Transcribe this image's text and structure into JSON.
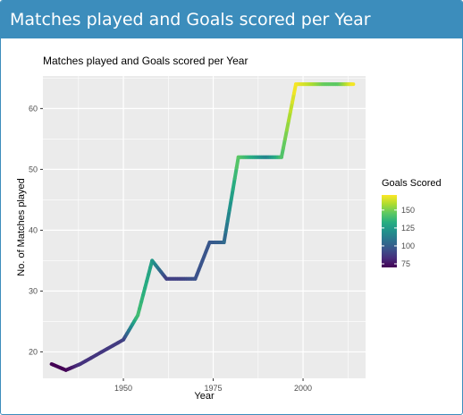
{
  "box": {
    "title": "Matches played and Goals scored per Year"
  },
  "chart_data": {
    "type": "line",
    "title": "Matches played and Goals scored per Year",
    "xlabel": "Year",
    "ylabel": "No. of Matches played",
    "xlim": [
      1927.6,
      2017.4
    ],
    "ylim": [
      15.65,
      65.35
    ],
    "xticks": [
      1950,
      1975,
      2000
    ],
    "yticks": [
      20,
      30,
      40,
      50,
      60
    ],
    "grid": true,
    "background": "#ebebeb",
    "series": [
      {
        "x": [
          1930,
          1934,
          1938,
          1950,
          1954,
          1958,
          1962,
          1966,
          1970,
          1974,
          1978,
          1982,
          1986,
          1990,
          1994,
          1998,
          2002,
          2006,
          2010,
          2014
        ],
        "y": [
          18,
          17,
          18,
          22,
          26,
          35,
          32,
          32,
          32,
          38,
          38,
          52,
          52,
          52,
          52,
          64,
          64,
          64,
          64,
          64
        ],
        "goals": [
          70,
          70,
          84,
          88,
          140,
          126,
          89,
          89,
          95,
          97,
          102,
          146,
          132,
          115,
          141,
          171,
          161,
          147,
          145,
          171
        ]
      }
    ],
    "color_legend": {
      "title": "Goals Scored",
      "breaks": [
        75,
        100,
        125,
        150
      ],
      "range": [
        70,
        171
      ],
      "placement": "right",
      "colors": [
        "#440154",
        "#472d7b",
        "#3b528b",
        "#2c728e",
        "#21918c",
        "#28ae80",
        "#5ec962",
        "#addc30",
        "#fde725"
      ]
    }
  }
}
